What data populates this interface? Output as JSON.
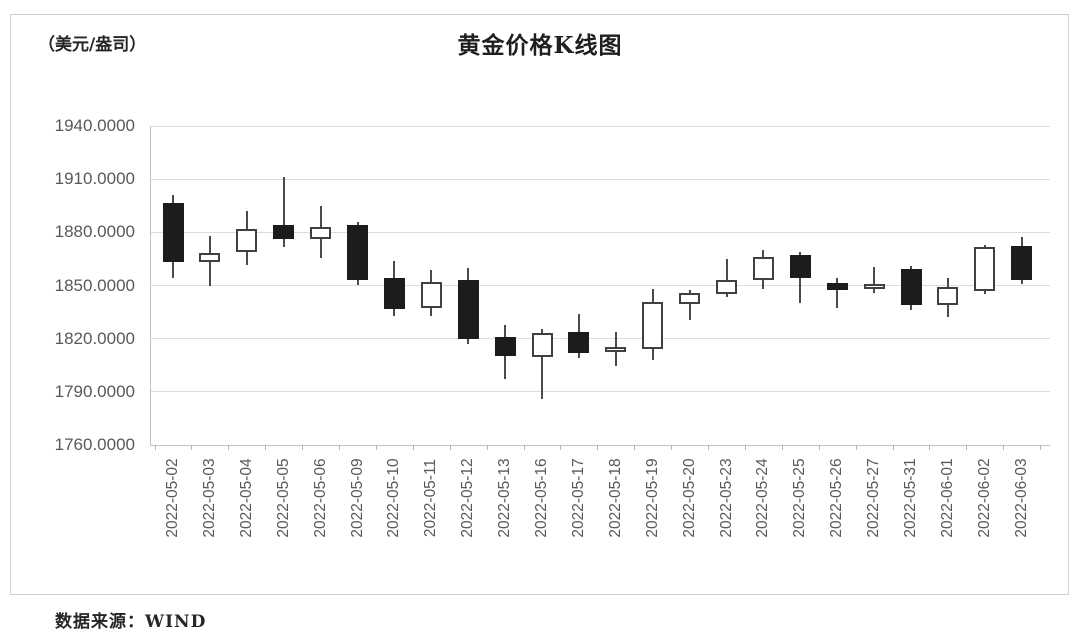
{
  "title": "黄金价格K线图",
  "unit_label": "（美元/盎司）",
  "source": "数据来源：WIND",
  "colors": {
    "up_fill": "#ffffff",
    "up_border": "#404040",
    "down_fill": "#1c1c1c",
    "wick": "#4a4a4a",
    "grid": "#dcdcdc",
    "axis_text": "#595959",
    "title_text": "#1f1f1f"
  },
  "chart_data": {
    "type": "candlestick",
    "title": "黄金价格K线图",
    "ylabel": "美元/盎司",
    "ylim": [
      1760,
      1940
    ],
    "y_tick_step": 30,
    "y_tick_labels": [
      "1940.0000",
      "1910.0000",
      "1880.0000",
      "1850.0000",
      "1820.0000",
      "1790.0000",
      "1760.0000"
    ],
    "grid": true,
    "up_style": "hollow-white",
    "down_style": "filled-black",
    "source": "WIND",
    "series": [
      {
        "date": "2022-05-02",
        "open": 1896.5,
        "high": 1901.0,
        "low": 1854.5,
        "close": 1863.0
      },
      {
        "date": "2022-05-03",
        "open": 1863.5,
        "high": 1878.0,
        "low": 1849.5,
        "close": 1868.5
      },
      {
        "date": "2022-05-04",
        "open": 1869.0,
        "high": 1892.0,
        "low": 1861.5,
        "close": 1882.0
      },
      {
        "date": "2022-05-05",
        "open": 1884.0,
        "high": 1911.0,
        "low": 1871.5,
        "close": 1876.5
      },
      {
        "date": "2022-05-06",
        "open": 1876.0,
        "high": 1895.0,
        "low": 1865.5,
        "close": 1883.0
      },
      {
        "date": "2022-05-09",
        "open": 1884.0,
        "high": 1886.0,
        "low": 1850.0,
        "close": 1853.0
      },
      {
        "date": "2022-05-10",
        "open": 1854.0,
        "high": 1864.0,
        "low": 1833.0,
        "close": 1836.5
      },
      {
        "date": "2022-05-11",
        "open": 1837.5,
        "high": 1858.5,
        "low": 1833.0,
        "close": 1852.0
      },
      {
        "date": "2022-05-12",
        "open": 1853.0,
        "high": 1860.0,
        "low": 1817.0,
        "close": 1820.0
      },
      {
        "date": "2022-05-13",
        "open": 1821.0,
        "high": 1827.5,
        "low": 1797.5,
        "close": 1810.0
      },
      {
        "date": "2022-05-16",
        "open": 1809.5,
        "high": 1825.5,
        "low": 1786.0,
        "close": 1823.0
      },
      {
        "date": "2022-05-17",
        "open": 1824.0,
        "high": 1834.0,
        "low": 1809.0,
        "close": 1812.0
      },
      {
        "date": "2022-05-18",
        "open": 1813.0,
        "high": 1823.5,
        "low": 1804.5,
        "close": 1815.5
      },
      {
        "date": "2022-05-19",
        "open": 1814.0,
        "high": 1848.0,
        "low": 1808.0,
        "close": 1840.5
      },
      {
        "date": "2022-05-20",
        "open": 1839.5,
        "high": 1847.5,
        "low": 1830.5,
        "close": 1845.5
      },
      {
        "date": "2022-05-23",
        "open": 1845.0,
        "high": 1865.0,
        "low": 1843.5,
        "close": 1853.0
      },
      {
        "date": "2022-05-24",
        "open": 1853.0,
        "high": 1870.0,
        "low": 1848.0,
        "close": 1866.0
      },
      {
        "date": "2022-05-25",
        "open": 1867.0,
        "high": 1869.0,
        "low": 1840.0,
        "close": 1854.0
      },
      {
        "date": "2022-05-26",
        "open": 1851.5,
        "high": 1854.0,
        "low": 1837.5,
        "close": 1847.5
      },
      {
        "date": "2022-05-27",
        "open": 1848.0,
        "high": 1860.5,
        "low": 1845.5,
        "close": 1851.0
      },
      {
        "date": "2022-05-31",
        "open": 1859.5,
        "high": 1861.0,
        "low": 1836.0,
        "close": 1839.0
      },
      {
        "date": "2022-06-01",
        "open": 1839.0,
        "high": 1854.0,
        "low": 1832.0,
        "close": 1849.0
      },
      {
        "date": "2022-06-02",
        "open": 1847.0,
        "high": 1873.0,
        "low": 1845.0,
        "close": 1871.5
      },
      {
        "date": "2022-06-03",
        "open": 1872.5,
        "high": 1877.5,
        "low": 1851.0,
        "close": 1853.0
      }
    ]
  }
}
